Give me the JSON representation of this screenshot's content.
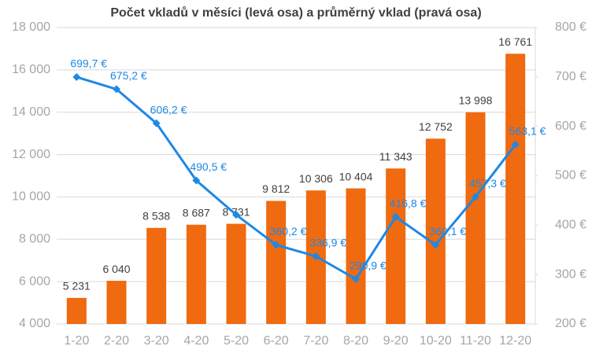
{
  "chart_data": {
    "type": "bar",
    "title": "Počet vkladů v měsíci (levá osa) a průměrný vklad (pravá osa)",
    "categories": [
      "1-20",
      "2-20",
      "3-20",
      "4-20",
      "5-20",
      "6-20",
      "7-20",
      "8-20",
      "9-20",
      "10-20",
      "11-20",
      "12-20"
    ],
    "series": [
      {
        "type": "bar",
        "color": "#f06a0f",
        "values": [
          5231,
          6040,
          8538,
          8687,
          8731,
          9812,
          10306,
          10404,
          11343,
          12752,
          13998,
          16761
        ],
        "value_labels": [
          "5 231",
          "6 040",
          "8 538",
          "8 687",
          "8 731",
          "9 812",
          "10 306",
          "10 404",
          "11 343",
          "12 752",
          "13 998",
          "16 761"
        ]
      },
      {
        "type": "line",
        "axis": "y2",
        "color": "#1e88e5",
        "values": [
          699.7,
          675.2,
          606.2,
          490.5,
          421,
          360.2,
          336.9,
          290.9,
          416.8,
          360.1,
          457.3,
          563.1
        ],
        "value_labels": [
          "699,7 €",
          "675,2 €",
          "606,2 €",
          "490,5 €",
          null,
          "360,2 €",
          "336,9 €",
          "290,9 €",
          "416,8 €",
          "360,1 €",
          "457,3 €",
          "563,1 €"
        ]
      }
    ],
    "ylim": [
      4000,
      18000
    ],
    "yticks": [
      {
        "value": 4000,
        "label": "4 000"
      },
      {
        "value": 6000,
        "label": "6 000"
      },
      {
        "value": 8000,
        "label": "8 000"
      },
      {
        "value": 10000,
        "label": "10 000"
      },
      {
        "value": 12000,
        "label": "12 000"
      },
      {
        "value": 14000,
        "label": "14 000"
      },
      {
        "value": 16000,
        "label": "16 000"
      },
      {
        "value": 18000,
        "label": "18 000"
      }
    ],
    "y2lim": [
      200,
      800
    ],
    "y2ticks": [
      {
        "value": 200,
        "label": "200 €"
      },
      {
        "value": 300,
        "label": "300 €"
      },
      {
        "value": 400,
        "label": "400 €"
      },
      {
        "value": 500,
        "label": "500 €"
      },
      {
        "value": 600,
        "label": "600 €"
      },
      {
        "value": 700,
        "label": "700 €"
      },
      {
        "value": 800,
        "label": "800 €"
      }
    ],
    "grid": true
  }
}
